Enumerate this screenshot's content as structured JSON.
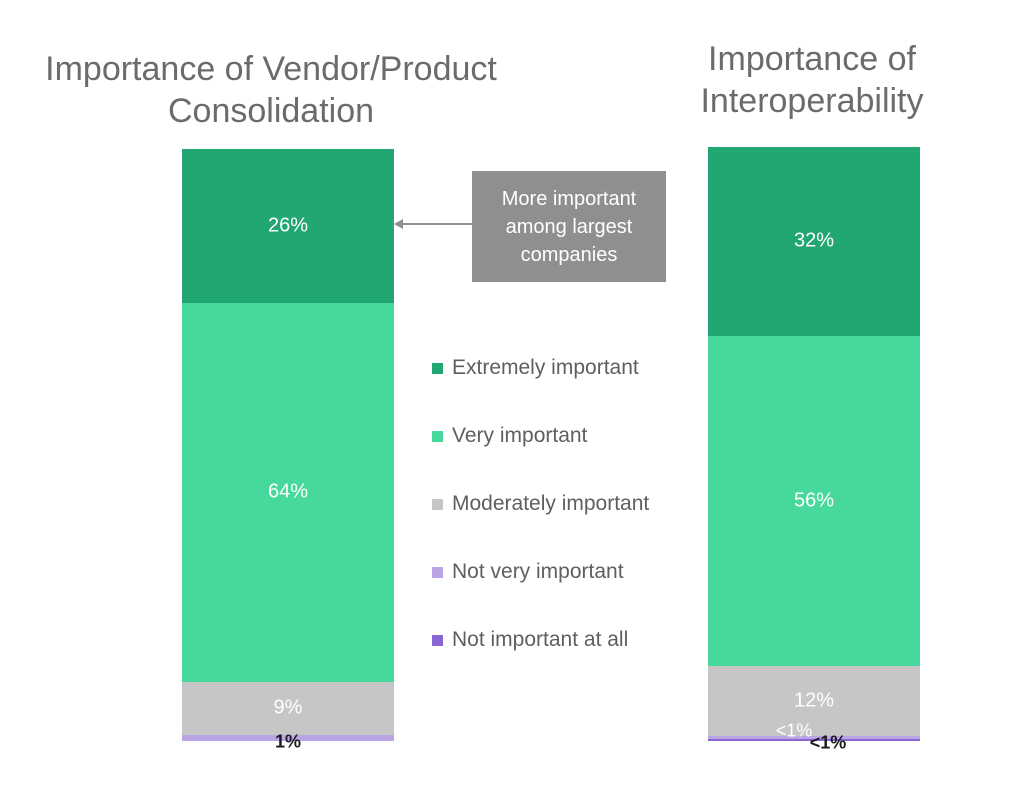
{
  "chart_data": [
    {
      "type": "bar",
      "stacked": true,
      "title": "Importance of Vendor/Product\nConsolidation",
      "segments": [
        {
          "category": "Not important at all",
          "value": 0,
          "label": ""
        },
        {
          "category": "Not very important",
          "value": 1,
          "label": "1%"
        },
        {
          "category": "Moderately important",
          "value": 9,
          "label": "9%"
        },
        {
          "category": "Very important",
          "value": 64,
          "label": "64%"
        },
        {
          "category": "Extremely important",
          "value": 26,
          "label": "26%"
        }
      ]
    },
    {
      "type": "bar",
      "stacked": true,
      "title": "Importance of\nInteroperability",
      "segments": [
        {
          "category": "Not important at all",
          "value": 0.4,
          "label": "<1%"
        },
        {
          "category": "Not very important",
          "value": 0.4,
          "label": "<1%"
        },
        {
          "category": "Moderately important",
          "value": 12,
          "label": "12%"
        },
        {
          "category": "Very important",
          "value": 56,
          "label": "56%"
        },
        {
          "category": "Extremely important",
          "value": 32,
          "label": "32%"
        }
      ]
    }
  ],
  "legend": [
    {
      "label": "Extremely important",
      "color": "#23a772"
    },
    {
      "label": "Very important",
      "color": "#47d89b"
    },
    {
      "label": "Moderately important",
      "color": "#c6c6c6"
    },
    {
      "label": "Not very important",
      "color": "#b9a4e6"
    },
    {
      "label": "Not important at all",
      "color": "#8a66d4"
    }
  ],
  "callout": {
    "text": "More important among largest companies"
  }
}
